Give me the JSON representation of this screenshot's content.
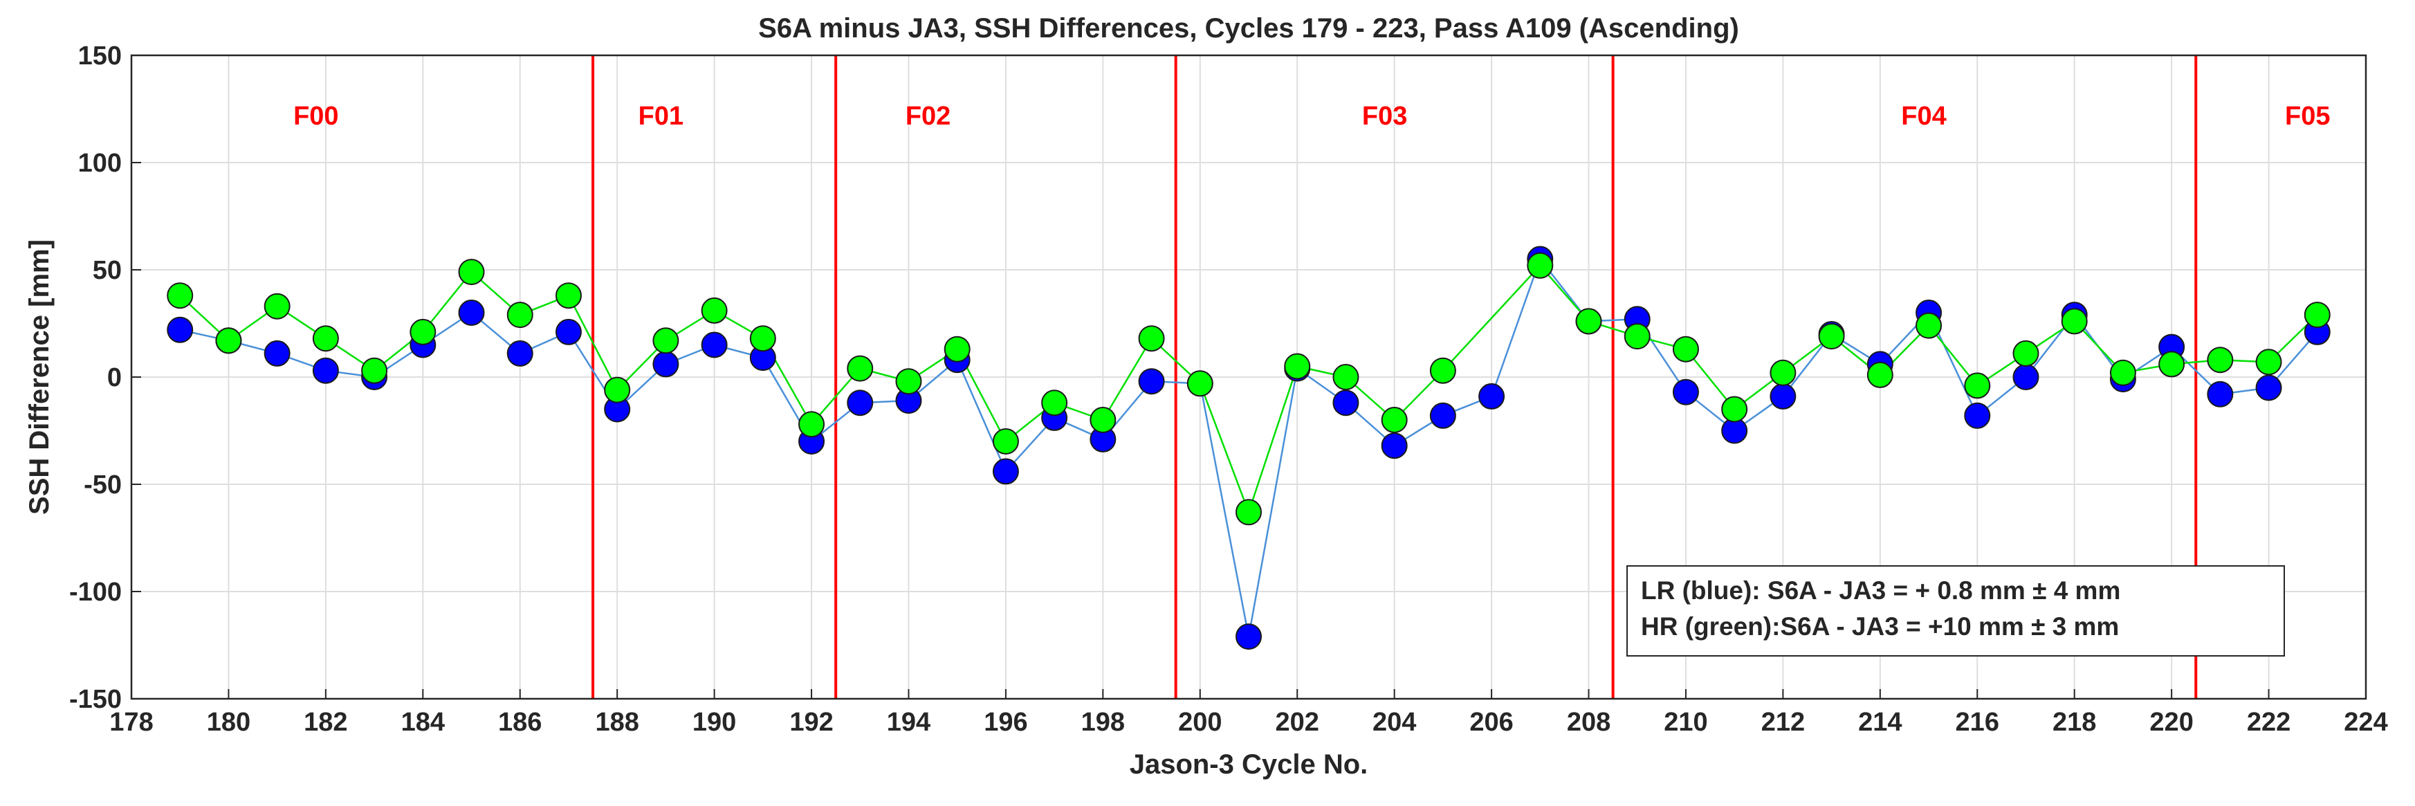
{
  "chart_data": {
    "type": "line",
    "title": "S6A minus JA3, SSH Differences, Cycles 179 - 223,  Pass A109 (Ascending)",
    "xlabel": "Jason-3 Cycle No.",
    "ylabel": "SSH Difference [mm]",
    "xlim": [
      178,
      224
    ],
    "ylim": [
      -150,
      150
    ],
    "xticks": [
      178,
      180,
      182,
      184,
      186,
      188,
      190,
      192,
      194,
      196,
      198,
      200,
      202,
      204,
      206,
      208,
      210,
      212,
      214,
      216,
      218,
      220,
      222,
      224
    ],
    "yticks": [
      -150,
      -100,
      -50,
      0,
      50,
      100,
      150
    ],
    "grid": true,
    "x": [
      179,
      180,
      181,
      182,
      183,
      184,
      185,
      186,
      187,
      188,
      189,
      190,
      191,
      192,
      193,
      194,
      195,
      196,
      197,
      198,
      199,
      200,
      201,
      202,
      203,
      204,
      205,
      206,
      207,
      208,
      209,
      210,
      211,
      212,
      213,
      214,
      215,
      216,
      217,
      218,
      219,
      220,
      221,
      222,
      223
    ],
    "series": [
      {
        "name": "LR (blue)",
        "color": "#0000ff",
        "line_color": "#4a90d9",
        "values": [
          22,
          17,
          11,
          3,
          0,
          15,
          30,
          11,
          21,
          -15,
          6,
          15,
          9,
          -30,
          -12,
          -11,
          8,
          -44,
          -19,
          -29,
          -2,
          -3,
          -121,
          4,
          -12,
          -32,
          -18,
          -9,
          55,
          26,
          27,
          -7,
          -25,
          -9,
          20,
          6,
          30,
          -18,
          0,
          29,
          -1,
          14,
          -8,
          -5,
          21
        ]
      },
      {
        "name": "HR (green)",
        "color": "#00ff00",
        "line_color": "#00e000",
        "values": [
          38,
          17,
          33,
          18,
          3,
          21,
          49,
          29,
          38,
          -6,
          17,
          31,
          18,
          -22,
          4,
          -2,
          13,
          -30,
          -12,
          -20,
          18,
          -3,
          -63,
          5,
          0,
          -20,
          3,
          null,
          52,
          26,
          19,
          13,
          -15,
          2,
          19,
          1,
          24,
          -4,
          11,
          26,
          2,
          6,
          8,
          7,
          29
        ]
      }
    ],
    "phase_lines": [
      187.5,
      192.5,
      199.5,
      208.5,
      220.5
    ],
    "phase_labels": [
      {
        "text": "F00",
        "x": 181.8
      },
      {
        "text": "F01",
        "x": 188.9
      },
      {
        "text": "F02",
        "x": 194.4
      },
      {
        "text": "F03",
        "x": 203.8
      },
      {
        "text": "F04",
        "x": 214.9
      },
      {
        "text": "F05",
        "x": 222.8
      }
    ],
    "phase_label_y": 122,
    "phase_color": "#ff0000",
    "legend": {
      "position": "bottom-right",
      "lines": [
        "LR (blue): S6A - JA3 =  + 0.8 mm ±  4 mm",
        "HR (green):S6A - JA3 = +10  mm ± 3  mm"
      ]
    }
  }
}
